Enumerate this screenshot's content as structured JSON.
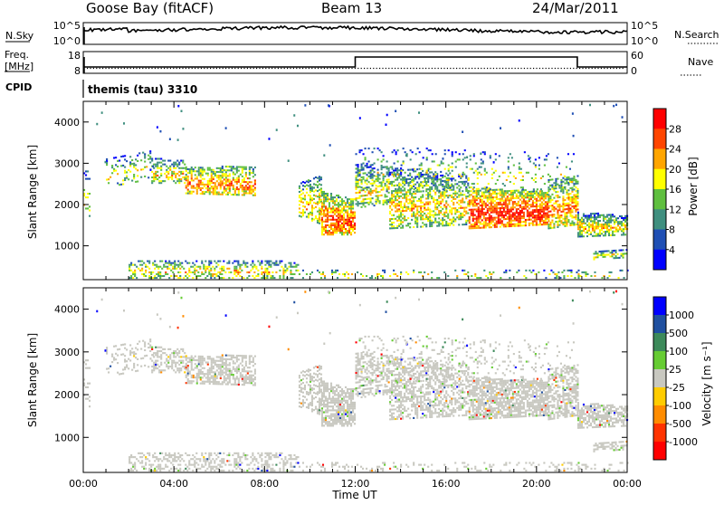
{
  "header": {
    "station": "Goose Bay (fitACF)",
    "beam": "Beam 13",
    "date": "24/Mar/2011"
  },
  "noise_panel": {
    "left_label": "N.Sky",
    "right_label": "N.Search",
    "left_ticks": [
      "10^5",
      "10^0"
    ],
    "right_ticks": [
      "10^5",
      "10^0"
    ]
  },
  "freq_panel": {
    "left_label_1": "Freq.",
    "left_label_2": "[MHz]",
    "right_label": "Nave",
    "left_ticks": [
      "18",
      "8"
    ],
    "right_ticks": [
      "60",
      "0"
    ]
  },
  "cpid": {
    "label": "CPID",
    "program": "themis (tau) 3310"
  },
  "chart_data": [
    {
      "type": "heatmap",
      "panel": "power",
      "ylabel": "Slant Range [km]",
      "yticks": [
        1000,
        2000,
        3000,
        4000
      ],
      "ylim": [
        180,
        4500
      ],
      "xlim_hours": [
        0,
        24
      ],
      "colorbar": {
        "label": "Power [dB]",
        "ticks": [
          "4",
          "8",
          "12",
          "16",
          "20",
          "24",
          "28"
        ],
        "colors": [
          "#0000ff",
          "#1f4fb4",
          "#3f8f7f",
          "#5fbf3f",
          "#ffff00",
          "#ffa500",
          "#ff4500",
          "#ff0000"
        ]
      }
    },
    {
      "type": "heatmap",
      "panel": "velocity",
      "ylabel": "Slant Range [km]",
      "yticks": [
        1000,
        2000,
        3000,
        4000
      ],
      "ylim": [
        180,
        4500
      ],
      "xlim_hours": [
        0,
        24
      ],
      "colorbar": {
        "label": "Velocity [m s⁻¹]",
        "ticks": [
          "1000",
          "500",
          "100",
          "25",
          "-25",
          "-100",
          "-500",
          "-1000"
        ],
        "colors": [
          "#0000ff",
          "#2050a0",
          "#3d8a5a",
          "#66cc33",
          "#c8c8c0",
          "#ffcc00",
          "#ff8c00",
          "#ff3300",
          "#ff0000"
        ]
      }
    }
  ],
  "xaxis": {
    "label": "Time UT",
    "ticks": [
      "00:00",
      "04:00",
      "08:00",
      "12:00",
      "16:00",
      "20:00",
      "00:00"
    ]
  }
}
